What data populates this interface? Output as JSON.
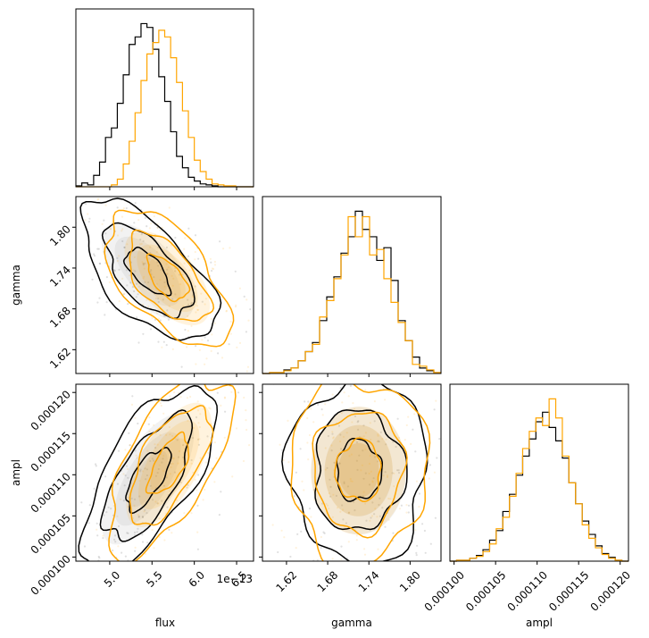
{
  "chart_data": {
    "type": "corner",
    "parameters": [
      "flux",
      "gamma",
      "ampl"
    ],
    "colors": {
      "run_black": "#000000",
      "run_orange": "#ffa500"
    },
    "axes": {
      "flux": {
        "range": [
          4.6e-13,
          6.7e-13
        ],
        "ticks": [
          5e-13,
          5.5e-13,
          6e-13,
          6.5e-13
        ],
        "ticklabels": [
          "5.0",
          "5.5",
          "6.0",
          "6.5"
        ],
        "offset_label": "1e−13",
        "label": "flux"
      },
      "gamma": {
        "range": [
          1.585,
          1.845
        ],
        "ticks": [
          1.62,
          1.68,
          1.74,
          1.8
        ],
        "ticklabels": [
          "1.62",
          "1.68",
          "1.74",
          "1.80"
        ],
        "label": "gamma"
      },
      "ampl": {
        "range": [
          9.95e-05,
          0.000121
        ],
        "ticks": [
          0.0001,
          0.000105,
          0.00011,
          0.000115,
          0.00012
        ],
        "ticklabels": [
          "0.000100",
          "0.000105",
          "0.000110",
          "0.000115",
          "0.000120"
        ],
        "label": "ampl"
      }
    },
    "histograms": {
      "flux": {
        "series": [
          {
            "color": "#000000",
            "values": [
              1,
              4,
              2,
              12,
              26,
              52,
              62,
              88,
              118,
              150,
              158,
              172,
              168,
              145,
              116,
              90,
              58,
              32,
              20,
              10,
              6,
              3,
              2,
              1,
              0,
              0,
              0,
              0,
              0,
              0
            ]
          },
          {
            "color": "#ffa500",
            "values": [
              0,
              0,
              0,
              0,
              0,
              0,
              2,
              8,
              24,
              48,
              78,
              112,
              140,
              152,
              165,
              158,
              136,
              110,
              80,
              52,
              28,
              16,
              8,
              3,
              2,
              1,
              1,
              0,
              0,
              0
            ]
          }
        ]
      },
      "gamma": {
        "series": [
          {
            "color": "#000000",
            "values": [
              0,
              1,
              1,
              4,
              6,
              14,
              24,
              34,
              58,
              84,
              106,
              132,
              150,
              178,
              158,
              150,
              124,
              138,
              102,
              58,
              36,
              18,
              6,
              3,
              1
            ]
          },
          {
            "color": "#ffa500",
            "values": [
              0,
              1,
              1,
              3,
              6,
              14,
              24,
              32,
              62,
              80,
              104,
              130,
              172,
              150,
              172,
              130,
              136,
              104,
              78,
              56,
              36,
              10,
              8,
              4,
              1
            ]
          }
        ]
      },
      "ampl": {
        "series": [
          {
            "color": "#000000",
            "values": [
              0,
              1,
              1,
              3,
              6,
              12,
              22,
              32,
              52,
              70,
              90,
              110,
              128,
              146,
              156,
              140,
              126,
              108,
              82,
              60,
              42,
              28,
              16,
              8,
              4,
              1,
              0
            ]
          },
          {
            "color": "#ffa500",
            "values": [
              0,
              1,
              1,
              3,
              5,
              10,
              18,
              34,
              46,
              68,
              92,
              118,
              136,
              150,
              142,
              170,
              150,
              110,
              82,
              60,
              38,
              24,
              14,
              7,
              3,
              1,
              0
            ]
          }
        ]
      }
    },
    "joint": [
      {
        "x": "flux",
        "y": "gamma",
        "series": [
          {
            "color": "#000000",
            "center": [
              5.45e-13,
              1.735
            ],
            "sd": [
              2.6e-14,
              0.034
            ],
            "corr": -0.62
          },
          {
            "color": "#ffa500",
            "center": [
              5.68e-13,
              1.725
            ],
            "sd": [
              2.4e-14,
              0.033
            ],
            "corr": -0.58
          }
        ]
      },
      {
        "x": "flux",
        "y": "ampl",
        "series": [
          {
            "color": "#000000",
            "center": [
              5.45e-13,
              0.0001095
            ],
            "sd": [
              2.6e-14,
              3.8e-06
            ],
            "corr": 0.68
          },
          {
            "color": "#ffa500",
            "center": [
              5.7e-13,
              0.0001112
            ],
            "sd": [
              2.4e-14,
              3.6e-06
            ],
            "corr": 0.64
          }
        ]
      },
      {
        "x": "gamma",
        "y": "ampl",
        "series": [
          {
            "color": "#000000",
            "center": [
              1.725,
              0.0001105
            ],
            "sd": [
              0.033,
              3.7e-06
            ],
            "corr": 0.0
          },
          {
            "color": "#ffa500",
            "center": [
              1.725,
              0.0001105
            ],
            "sd": [
              0.033,
              3.7e-06
            ],
            "corr": 0.02
          }
        ]
      }
    ],
    "contour_levels": [
      0.39,
      0.86,
      0.99
    ],
    "grid": false,
    "legend": "none"
  }
}
